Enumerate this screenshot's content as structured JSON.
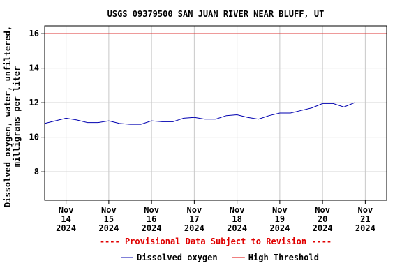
{
  "chart_data": {
    "type": "line",
    "title": "USGS 09379500 SAN JUAN RIVER NEAR BLUFF, UT",
    "y_label": [
      "Dissolved oxygen, water, unfiltered,",
      "milligrams per liter"
    ],
    "annotation": "---- Provisional Data Subject to Revision ----",
    "x": [
      "2024-11-13T12:00",
      "2024-11-13T18:00",
      "2024-11-14T00:00",
      "2024-11-14T06:00",
      "2024-11-14T12:00",
      "2024-11-14T18:00",
      "2024-11-15T00:00",
      "2024-11-15T06:00",
      "2024-11-15T12:00",
      "2024-11-15T18:00",
      "2024-11-16T00:00",
      "2024-11-16T06:00",
      "2024-11-16T12:00",
      "2024-11-16T18:00",
      "2024-11-17T00:00",
      "2024-11-17T06:00",
      "2024-11-17T12:00",
      "2024-11-17T18:00",
      "2024-11-18T00:00",
      "2024-11-18T06:00",
      "2024-11-18T12:00",
      "2024-11-18T18:00",
      "2024-11-19T00:00",
      "2024-11-19T06:00",
      "2024-11-19T12:00",
      "2024-11-19T18:00",
      "2024-11-20T00:00",
      "2024-11-20T06:00",
      "2024-11-20T12:00",
      "2024-11-20T18:00"
    ],
    "series": [
      {
        "name": "Dissolved oxygen",
        "color": "#0000b0",
        "values": [
          10.8,
          10.95,
          11.1,
          11.0,
          10.85,
          10.85,
          10.95,
          10.8,
          10.75,
          10.75,
          10.95,
          10.9,
          10.9,
          11.1,
          11.15,
          11.05,
          11.05,
          11.25,
          11.3,
          11.15,
          11.05,
          11.25,
          11.4,
          11.4,
          11.55,
          11.7,
          11.95,
          11.95,
          11.75,
          12.0
        ]
      }
    ],
    "thresholds": [
      {
        "name": "High Threshold",
        "color": "#e00000",
        "value": 16
      }
    ],
    "xlim": [
      "2024-11-13T12:00",
      "2024-11-21T12:00"
    ],
    "xticks": [
      {
        "value": "2024-11-14T00:00",
        "label": [
          "Nov",
          "14",
          "2024"
        ]
      },
      {
        "value": "2024-11-15T00:00",
        "label": [
          "Nov",
          "15",
          "2024"
        ]
      },
      {
        "value": "2024-11-16T00:00",
        "label": [
          "Nov",
          "16",
          "2024"
        ]
      },
      {
        "value": "2024-11-17T00:00",
        "label": [
          "Nov",
          "17",
          "2024"
        ]
      },
      {
        "value": "2024-11-18T00:00",
        "label": [
          "Nov",
          "18",
          "2024"
        ]
      },
      {
        "value": "2024-11-19T00:00",
        "label": [
          "Nov",
          "19",
          "2024"
        ]
      },
      {
        "value": "2024-11-20T00:00",
        "label": [
          "Nov",
          "20",
          "2024"
        ]
      },
      {
        "value": "2024-11-21T00:00",
        "label": [
          "Nov",
          "21",
          "2024"
        ]
      }
    ],
    "ylim": [
      6.35,
      16.45
    ],
    "yticks": [
      8,
      10,
      12,
      14,
      16
    ],
    "grid": true
  }
}
